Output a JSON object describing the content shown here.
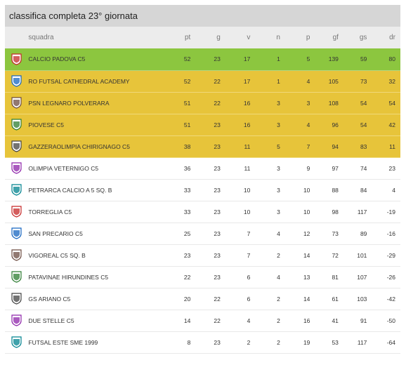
{
  "title": "classifica completa 23° giornata",
  "columns": [
    "squadra",
    "pt",
    "g",
    "v",
    "n",
    "p",
    "gf",
    "gs",
    "dr"
  ],
  "colors": {
    "first": "#8cc63f",
    "playoff": "#e7c43a",
    "header": "#d6d6d6"
  },
  "rows": [
    {
      "team": "CALCIO PADOVA C5",
      "pt": "52",
      "g": "23",
      "v": "17",
      "n": "1",
      "p": "5",
      "gf": "139",
      "gs": "59",
      "dr": "80",
      "zone": "first",
      "icon": "padova-crest-icon"
    },
    {
      "team": "RO FUTSAL CATHEDRAL ACADEMY",
      "pt": "52",
      "g": "22",
      "v": "17",
      "n": "1",
      "p": "4",
      "gf": "105",
      "gs": "73",
      "dr": "32",
      "zone": "playoff",
      "icon": "ro-futsal-crest-icon"
    },
    {
      "team": "PSN LEGNARO POLVERARA",
      "pt": "51",
      "g": "22",
      "v": "16",
      "n": "3",
      "p": "3",
      "gf": "108",
      "gs": "54",
      "dr": "54",
      "zone": "playoff",
      "icon": "legnaro-crest-icon"
    },
    {
      "team": "PIOVESE C5",
      "pt": "51",
      "g": "23",
      "v": "16",
      "n": "3",
      "p": "4",
      "gf": "96",
      "gs": "54",
      "dr": "42",
      "zone": "playoff",
      "icon": "piovese-crest-icon"
    },
    {
      "team": "GAZZERAOLIMPIA CHIRIGNAGO C5",
      "pt": "38",
      "g": "23",
      "v": "11",
      "n": "5",
      "p": "7",
      "gf": "94",
      "gs": "83",
      "dr": "11",
      "zone": "playoff",
      "icon": "gazzera-crest-icon"
    },
    {
      "team": "OLIMPIA VETERNIGO C5",
      "pt": "36",
      "g": "23",
      "v": "11",
      "n": "3",
      "p": "9",
      "gf": "97",
      "gs": "74",
      "dr": "23",
      "zone": "none",
      "icon": "veternigo-crest-icon"
    },
    {
      "team": "PETRARCA CALCIO A 5 Sq. B",
      "pt": "33",
      "g": "23",
      "v": "10",
      "n": "3",
      "p": "10",
      "gf": "88",
      "gs": "84",
      "dr": "4",
      "zone": "none",
      "icon": "petrarca-crest-icon"
    },
    {
      "team": "TORREGLIA C5",
      "pt": "33",
      "g": "23",
      "v": "10",
      "n": "3",
      "p": "10",
      "gf": "98",
      "gs": "117",
      "dr": "-19",
      "zone": "none",
      "icon": "torreglia-crest-icon"
    },
    {
      "team": "SAN PRECARIO C5",
      "pt": "25",
      "g": "23",
      "v": "7",
      "n": "4",
      "p": "12",
      "gf": "73",
      "gs": "89",
      "dr": "-16",
      "zone": "none",
      "icon": "san-precario-crest-icon"
    },
    {
      "team": "VIGOREAL C5 Sq. B",
      "pt": "23",
      "g": "23",
      "v": "7",
      "n": "2",
      "p": "14",
      "gf": "72",
      "gs": "101",
      "dr": "-29",
      "zone": "none",
      "icon": "vigoreal-crest-icon"
    },
    {
      "team": "PATAVINAE HIRUNDINES C5",
      "pt": "22",
      "g": "23",
      "v": "6",
      "n": "4",
      "p": "13",
      "gf": "81",
      "gs": "107",
      "dr": "-26",
      "zone": "none",
      "icon": "patavinae-crest-icon"
    },
    {
      "team": "GS ARIANO C5",
      "pt": "20",
      "g": "22",
      "v": "6",
      "n": "2",
      "p": "14",
      "gf": "61",
      "gs": "103",
      "dr": "-42",
      "zone": "none",
      "icon": "ariano-crest-icon"
    },
    {
      "team": "DUE STELLE C5",
      "pt": "14",
      "g": "22",
      "v": "4",
      "n": "2",
      "p": "16",
      "gf": "41",
      "gs": "91",
      "dr": "-50",
      "zone": "none",
      "icon": "due-stelle-crest-icon"
    },
    {
      "team": "FUTSAL ESTE SME 1999",
      "pt": "8",
      "g": "23",
      "v": "2",
      "n": "2",
      "p": "19",
      "gf": "53",
      "gs": "117",
      "dr": "-64",
      "zone": "none",
      "icon": "este-crest-icon"
    }
  ]
}
